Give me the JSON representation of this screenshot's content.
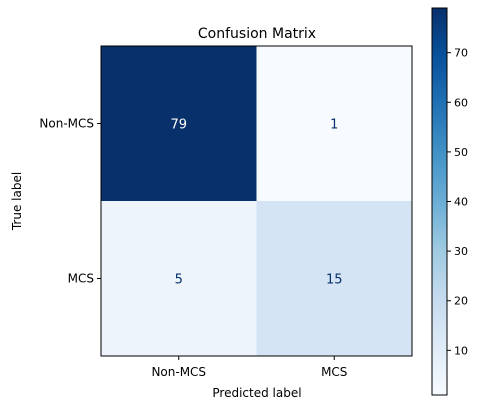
{
  "chart_data": {
    "type": "heatmap",
    "title": "Confusion Matrix",
    "xlabel": "Predicted label",
    "ylabel": "True label",
    "x_categories": [
      "Non-MCS",
      "MCS"
    ],
    "y_categories": [
      "Non-MCS",
      "MCS"
    ],
    "values": [
      [
        79,
        1
      ],
      [
        5,
        15
      ]
    ],
    "colormap": "Blues",
    "vmin": 1,
    "vmax": 79,
    "colorbar_ticks": [
      10,
      20,
      30,
      40,
      50,
      60,
      70
    ],
    "grid": false,
    "colorbar_placement": "right"
  }
}
